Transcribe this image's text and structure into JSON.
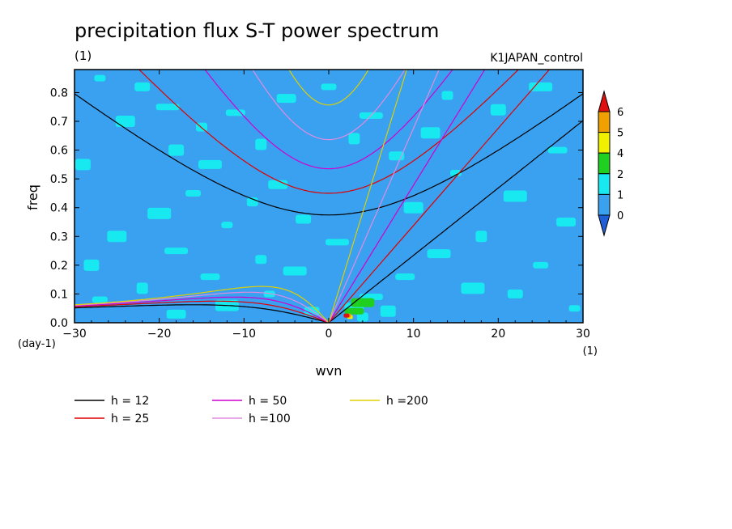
{
  "chart_data": {
    "type": "heatmap",
    "title": "precipitation flux S-T power spectrum",
    "subtitle_left": "(1)",
    "subtitle_right": "K1JAPAN_control",
    "xlabel": "wvn",
    "ylabel": "freq",
    "x_unit": "(1)",
    "y_unit": "(day-1)",
    "xlim": [
      -30,
      30
    ],
    "ylim": [
      0,
      0.88
    ],
    "x_ticks": [
      -30,
      -20,
      -10,
      0,
      10,
      20,
      30
    ],
    "y_ticks": [
      0.0,
      0.1,
      0.2,
      0.3,
      0.4,
      0.5,
      0.6,
      0.7,
      0.8
    ],
    "x_tick_labels": [
      "−30",
      "−20",
      "−10",
      "0",
      "10",
      "20",
      "30"
    ],
    "y_tick_labels": [
      "0.0",
      "0.1",
      "0.2",
      "0.3",
      "0.4",
      "0.5",
      "0.6",
      "0.7",
      "0.8"
    ],
    "colorbar": {
      "levels": [
        0,
        1,
        2,
        4,
        5,
        6
      ],
      "labels": [
        "0",
        "1",
        "2",
        "4",
        "5",
        "6"
      ],
      "colors": [
        "#1e5fd8",
        "#3aa0f0",
        "#18e8f0",
        "#20d020",
        "#f0f000",
        "#f0a000",
        "#e01010"
      ]
    },
    "background_color": "#3aa0f0",
    "patches": [
      {
        "x": -27,
        "y": 0.85,
        "level": 1
      },
      {
        "x": -22,
        "y": 0.82,
        "level": 1
      },
      {
        "x": -24,
        "y": 0.7,
        "level": 1
      },
      {
        "x": -19,
        "y": 0.75,
        "level": 1
      },
      {
        "x": -15,
        "y": 0.68,
        "level": 1
      },
      {
        "x": -18,
        "y": 0.6,
        "level": 1
      },
      {
        "x": -11,
        "y": 0.73,
        "level": 1
      },
      {
        "x": -14,
        "y": 0.55,
        "level": 1
      },
      {
        "x": -8,
        "y": 0.62,
        "level": 1
      },
      {
        "x": -16,
        "y": 0.45,
        "level": 1
      },
      {
        "x": -6,
        "y": 0.48,
        "level": 1
      },
      {
        "x": -20,
        "y": 0.38,
        "level": 1
      },
      {
        "x": -12,
        "y": 0.34,
        "level": 1
      },
      {
        "x": -3,
        "y": 0.36,
        "level": 1
      },
      {
        "x": -25,
        "y": 0.3,
        "level": 1
      },
      {
        "x": -18,
        "y": 0.25,
        "level": 1
      },
      {
        "x": -8,
        "y": 0.22,
        "level": 1
      },
      {
        "x": -28,
        "y": 0.2,
        "level": 1
      },
      {
        "x": -14,
        "y": 0.16,
        "level": 1
      },
      {
        "x": -4,
        "y": 0.18,
        "level": 1
      },
      {
        "x": -22,
        "y": 0.12,
        "level": 1
      },
      {
        "x": -27,
        "y": 0.08,
        "level": 1
      },
      {
        "x": -18,
        "y": 0.03,
        "level": 1
      },
      {
        "x": -12,
        "y": 0.06,
        "level": 1
      },
      {
        "x": -7,
        "y": 0.1,
        "level": 1
      },
      {
        "x": -2,
        "y": 0.04,
        "level": 1
      },
      {
        "x": 3,
        "y": 0.05,
        "level": 1
      },
      {
        "x": 5,
        "y": 0.09,
        "level": 1
      },
      {
        "x": 4,
        "y": 0.02,
        "level": 1
      },
      {
        "x": 7,
        "y": 0.04,
        "level": 1
      },
      {
        "x": 9,
        "y": 0.16,
        "level": 1
      },
      {
        "x": 13,
        "y": 0.24,
        "level": 1
      },
      {
        "x": 18,
        "y": 0.3,
        "level": 1
      },
      {
        "x": 25,
        "y": 0.2,
        "level": 1
      },
      {
        "x": 28,
        "y": 0.35,
        "level": 1
      },
      {
        "x": 22,
        "y": 0.44,
        "level": 1
      },
      {
        "x": 15,
        "y": 0.52,
        "level": 1
      },
      {
        "x": 8,
        "y": 0.58,
        "level": 1
      },
      {
        "x": 12,
        "y": 0.66,
        "level": 1
      },
      {
        "x": 5,
        "y": 0.72,
        "level": 1
      },
      {
        "x": 14,
        "y": 0.79,
        "level": 1
      },
      {
        "x": 20,
        "y": 0.74,
        "level": 1
      },
      {
        "x": 27,
        "y": 0.6,
        "level": 1
      },
      {
        "x": 25,
        "y": 0.82,
        "level": 1
      },
      {
        "x": 3,
        "y": 0.64,
        "level": 1
      },
      {
        "x": 0,
        "y": 0.82,
        "level": 1
      },
      {
        "x": -5,
        "y": 0.78,
        "level": 1
      },
      {
        "x": 17,
        "y": 0.12,
        "level": 1
      },
      {
        "x": 29,
        "y": 0.05,
        "level": 1
      },
      {
        "x": 22,
        "y": 0.1,
        "level": 1
      },
      {
        "x": 10,
        "y": 0.4,
        "level": 1
      },
      {
        "x": 1,
        "y": 0.28,
        "level": 1
      },
      {
        "x": -9,
        "y": 0.42,
        "level": 1
      },
      {
        "x": -29,
        "y": 0.55,
        "level": 1
      },
      {
        "x": 3,
        "y": 0.04,
        "level": 2
      },
      {
        "x": 4,
        "y": 0.07,
        "level": 2
      },
      {
        "x": 2.5,
        "y": 0.02,
        "level": 4
      },
      {
        "x": 2.3,
        "y": 0.025,
        "level": 5
      },
      {
        "x": 2.1,
        "y": 0.025,
        "level": 6
      }
    ],
    "lines": [
      {
        "h": 12,
        "color": "#000000"
      },
      {
        "h": 25,
        "color": "#e00000"
      },
      {
        "h": 50,
        "color": "#d000d0"
      },
      {
        "h": 100,
        "color": "#e08ce0"
      },
      {
        "h": 200,
        "color": "#e0d000"
      }
    ],
    "legend_labels": [
      "h = 12",
      "h = 25",
      "h = 50",
      "h =100",
      "h =200"
    ],
    "legend_placement": "bottom"
  }
}
